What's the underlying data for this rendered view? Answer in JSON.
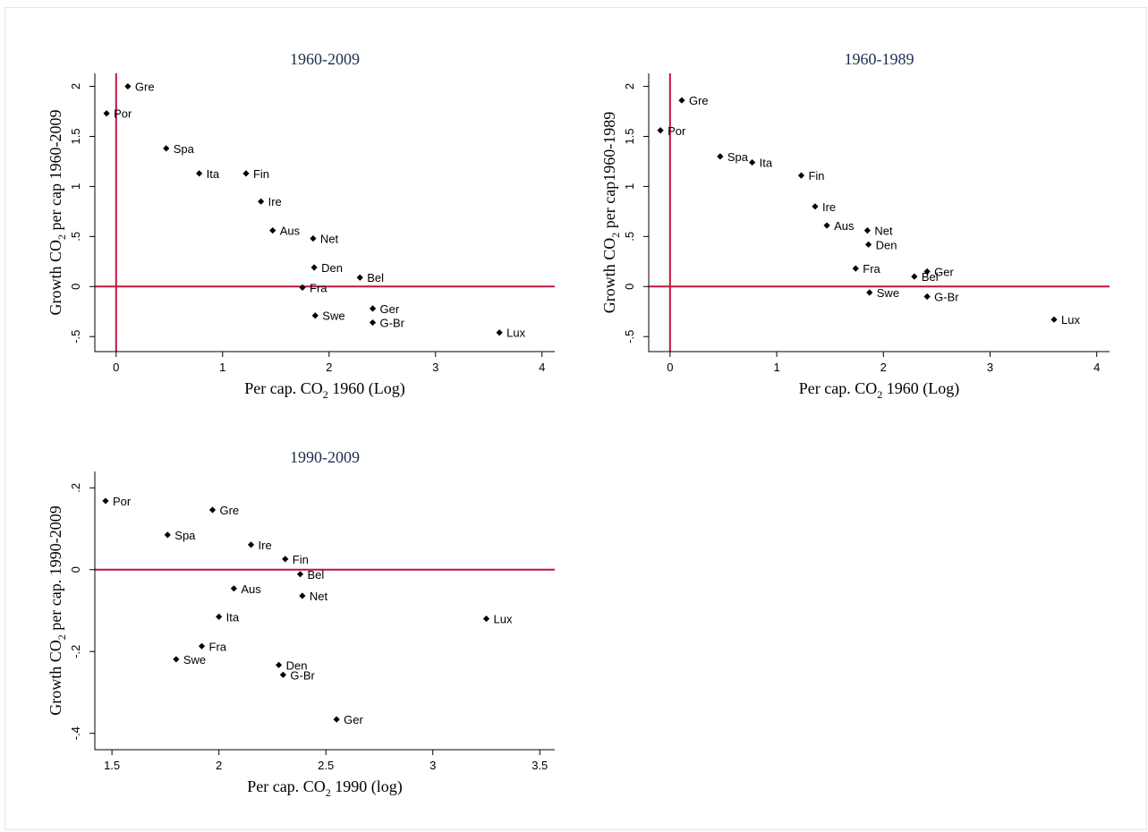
{
  "colors": {
    "ref_line": "#c0143c",
    "axis": "#000000",
    "marker": "#000000",
    "title": "#1c2d54"
  },
  "chart_data": [
    {
      "type": "scatter",
      "title": "1960-2009",
      "xlabel": "Per cap. CO₂ 1960 (Log)",
      "ylabel": "Growth CO₂ per cap 1960-2009",
      "xlim": [
        -0.2,
        4.12
      ],
      "ylim": [
        -0.65,
        2.13
      ],
      "xticks": [
        0,
        1,
        2,
        3,
        4
      ],
      "xtick_labels": [
        "0",
        "1",
        "2",
        "3",
        "4"
      ],
      "yticks": [
        -0.5,
        0,
        0.5,
        1,
        1.5,
        2
      ],
      "ytick_labels": [
        "-.5",
        "0",
        ".5",
        "1",
        "1.5",
        "2"
      ],
      "reference_lines": {
        "vertical_x": 0,
        "horizontal_y": 0
      },
      "points": [
        {
          "label": "Gre",
          "x": 0.11,
          "y": 2.0
        },
        {
          "label": "Por",
          "x": -0.09,
          "y": 1.73
        },
        {
          "label": "Spa",
          "x": 0.47,
          "y": 1.38
        },
        {
          "label": "Ita",
          "x": 0.78,
          "y": 1.13
        },
        {
          "label": "Fin",
          "x": 1.22,
          "y": 1.13
        },
        {
          "label": "Ire",
          "x": 1.36,
          "y": 0.85
        },
        {
          "label": "Aus",
          "x": 1.47,
          "y": 0.56
        },
        {
          "label": "Net",
          "x": 1.85,
          "y": 0.48
        },
        {
          "label": "Den",
          "x": 1.86,
          "y": 0.19
        },
        {
          "label": "Bel",
          "x": 2.29,
          "y": 0.09
        },
        {
          "label": "Fra",
          "x": 1.75,
          "y": -0.01
        },
        {
          "label": "Swe",
          "x": 1.87,
          "y": -0.29
        },
        {
          "label": "Ger",
          "x": 2.41,
          "y": -0.22
        },
        {
          "label": "G-Br",
          "x": 2.41,
          "y": -0.36
        },
        {
          "label": "Lux",
          "x": 3.6,
          "y": -0.46
        }
      ]
    },
    {
      "type": "scatter",
      "title": "1960-1989",
      "xlabel": "Per cap. CO₂ 1960 (Log)",
      "ylabel": "Growth CO₂ per cap1960-1989",
      "xlim": [
        -0.2,
        4.12
      ],
      "ylim": [
        -0.65,
        2.13
      ],
      "xticks": [
        0,
        1,
        2,
        3,
        4
      ],
      "xtick_labels": [
        "0",
        "1",
        "2",
        "3",
        "4"
      ],
      "yticks": [
        -0.5,
        0,
        0.5,
        1,
        1.5,
        2
      ],
      "ytick_labels": [
        "-.5",
        "0",
        ".5",
        "1",
        "1.5",
        "2"
      ],
      "reference_lines": {
        "vertical_x": 0,
        "horizontal_y": 0
      },
      "points": [
        {
          "label": "Gre",
          "x": 0.11,
          "y": 1.86
        },
        {
          "label": "Por",
          "x": -0.09,
          "y": 1.56
        },
        {
          "label": "Spa",
          "x": 0.47,
          "y": 1.3
        },
        {
          "label": "Ita",
          "x": 0.77,
          "y": 1.24
        },
        {
          "label": "Fin",
          "x": 1.23,
          "y": 1.11
        },
        {
          "label": "Ire",
          "x": 1.36,
          "y": 0.8
        },
        {
          "label": "Aus",
          "x": 1.47,
          "y": 0.61
        },
        {
          "label": "Net",
          "x": 1.85,
          "y": 0.56
        },
        {
          "label": "Den",
          "x": 1.86,
          "y": 0.42
        },
        {
          "label": "Fra",
          "x": 1.74,
          "y": 0.18
        },
        {
          "label": "Bel",
          "x": 2.29,
          "y": 0.1
        },
        {
          "label": "Ger",
          "x": 2.41,
          "y": 0.15
        },
        {
          "label": "Swe",
          "x": 1.87,
          "y": -0.06
        },
        {
          "label": "G-Br",
          "x": 2.41,
          "y": -0.1
        },
        {
          "label": "Lux",
          "x": 3.6,
          "y": -0.33
        }
      ]
    },
    {
      "type": "scatter",
      "title": "1990-2009",
      "xlabel": "Per cap. CO₂ 1990 (log)",
      "ylabel": "Growth CO₂ per cap. 1990-2009",
      "xlim": [
        1.42,
        3.57
      ],
      "ylim": [
        -0.44,
        0.24
      ],
      "xticks": [
        1.5,
        2,
        2.5,
        3,
        3.5
      ],
      "xtick_labels": [
        "1.5",
        "2",
        "2.5",
        "3",
        "3.5"
      ],
      "yticks": [
        -0.4,
        -0.2,
        0,
        0.2
      ],
      "ytick_labels": [
        "-.4",
        "-.2",
        "0",
        ".2"
      ],
      "reference_lines": {
        "horizontal_y": 0
      },
      "points": [
        {
          "label": "Por",
          "x": 1.47,
          "y": 0.168
        },
        {
          "label": "Gre",
          "x": 1.97,
          "y": 0.146
        },
        {
          "label": "Spa",
          "x": 1.76,
          "y": 0.085
        },
        {
          "label": "Ire",
          "x": 2.15,
          "y": 0.061
        },
        {
          "label": "Fin",
          "x": 2.31,
          "y": 0.026
        },
        {
          "label": "Bel",
          "x": 2.38,
          "y": -0.011
        },
        {
          "label": "Aus",
          "x": 2.07,
          "y": -0.046
        },
        {
          "label": "Net",
          "x": 2.39,
          "y": -0.064
        },
        {
          "label": "Ita",
          "x": 2.0,
          "y": -0.115
        },
        {
          "label": "Lux",
          "x": 3.25,
          "y": -0.12
        },
        {
          "label": "Fra",
          "x": 1.92,
          "y": -0.187
        },
        {
          "label": "Swe",
          "x": 1.8,
          "y": -0.219
        },
        {
          "label": "Den",
          "x": 2.28,
          "y": -0.233
        },
        {
          "label": "G-Br",
          "x": 2.3,
          "y": -0.257
        },
        {
          "label": "Ger",
          "x": 2.55,
          "y": -0.366
        }
      ]
    }
  ]
}
